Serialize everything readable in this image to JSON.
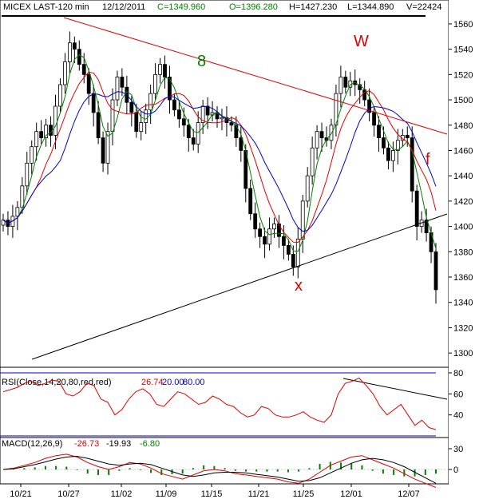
{
  "header": {
    "symbol": "MICEX LAST-120 min",
    "date": "12/12/2011",
    "close": "C=1349.960",
    "open": "O=1396.280",
    "high": "H=1427.230",
    "low": "L=1344.890",
    "volume": "V=22424"
  },
  "annotations": {
    "eight": "8",
    "w": "W",
    "x": "x",
    "f": "f"
  },
  "rsi": {
    "label": "RSI(Close,14,20,80,red,red)",
    "value": "26.74",
    "lower": "20.00",
    "upper": "80.00",
    "ticks": [
      "80",
      "60",
      "40"
    ]
  },
  "macd": {
    "label": "MACD(12,26,9)",
    "macd": "-26.73",
    "signal": "-19.93",
    "hist": "-6.80",
    "ticks": [
      "30",
      "0"
    ]
  },
  "colors": {
    "up_green": "#008000",
    "red": "#e00000",
    "blue": "#0000cc",
    "black": "#000000"
  },
  "chart_data": {
    "type": "candlestick",
    "ylim": [
      1290,
      1565
    ],
    "yticks": [
      1300,
      1320,
      1340,
      1360,
      1380,
      1400,
      1420,
      1440,
      1460,
      1480,
      1500,
      1520,
      1540,
      1560
    ],
    "xticks": [
      "10/21",
      "10/27",
      "11/02",
      "11/09",
      "11/15",
      "11/21",
      "11/25",
      "12/01",
      "12/07"
    ],
    "price": [
      1405,
      1400,
      1408,
      1415,
      1432,
      1450,
      1463,
      1475,
      1470,
      1480,
      1472,
      1495,
      1512,
      1530,
      1545,
      1540,
      1528,
      1520,
      1505,
      1490,
      1470,
      1450,
      1475,
      1500,
      1518,
      1510,
      1498,
      1490,
      1475,
      1482,
      1492,
      1505,
      1520,
      1528,
      1518,
      1500,
      1492,
      1485,
      1480,
      1470,
      1465,
      1482,
      1495,
      1488,
      1490,
      1485,
      1486,
      1482,
      1480,
      1470,
      1460,
      1430,
      1410,
      1398,
      1392,
      1386,
      1398,
      1402,
      1392,
      1385,
      1378,
      1368,
      1390,
      1420,
      1440,
      1462,
      1475,
      1470,
      1468,
      1480,
      1505,
      1518,
      1510,
      1515,
      1512,
      1508,
      1500,
      1490,
      1480,
      1470,
      1462,
      1452,
      1460,
      1468,
      1472,
      1470,
      1428,
      1400,
      1405,
      1395,
      1380,
      1350
    ],
    "sma_green": "fast",
    "sma_red": "medium",
    "sma_blue": "slow",
    "rsi_values": [
      62,
      64,
      66,
      70,
      72,
      68,
      70,
      73,
      72,
      60,
      58,
      62,
      70,
      68,
      55,
      52,
      40,
      45,
      55,
      62,
      65,
      60,
      50,
      48,
      55,
      62,
      60,
      55,
      50,
      52,
      58,
      55,
      50,
      48,
      42,
      38,
      40,
      48,
      46,
      40,
      38,
      38,
      40,
      43,
      38,
      35,
      33,
      40,
      60,
      70,
      72,
      75,
      68,
      60,
      48,
      40,
      45,
      50,
      40,
      30,
      35,
      28,
      26
    ],
    "macd_values": [
      0,
      2,
      6,
      10,
      16,
      20,
      22,
      18,
      10,
      4,
      0,
      4,
      10,
      8,
      2,
      -6,
      -10,
      -14,
      -8,
      -2,
      0,
      -2,
      -6,
      -8,
      -10,
      -12,
      -14,
      -18,
      -20,
      -14,
      -4,
      6,
      12,
      18,
      20,
      14,
      8,
      2,
      -6,
      -14,
      -20,
      -26
    ],
    "signal_values": [
      0,
      1,
      4,
      7,
      11,
      15,
      18,
      19,
      16,
      12,
      8,
      6,
      8,
      9,
      7,
      2,
      -3,
      -8,
      -10,
      -8,
      -5,
      -4,
      -4,
      -5,
      -7,
      -9,
      -11,
      -14,
      -17,
      -16,
      -12,
      -5,
      2,
      9,
      14,
      16,
      14,
      10,
      4,
      -4,
      -12,
      -20
    ]
  }
}
